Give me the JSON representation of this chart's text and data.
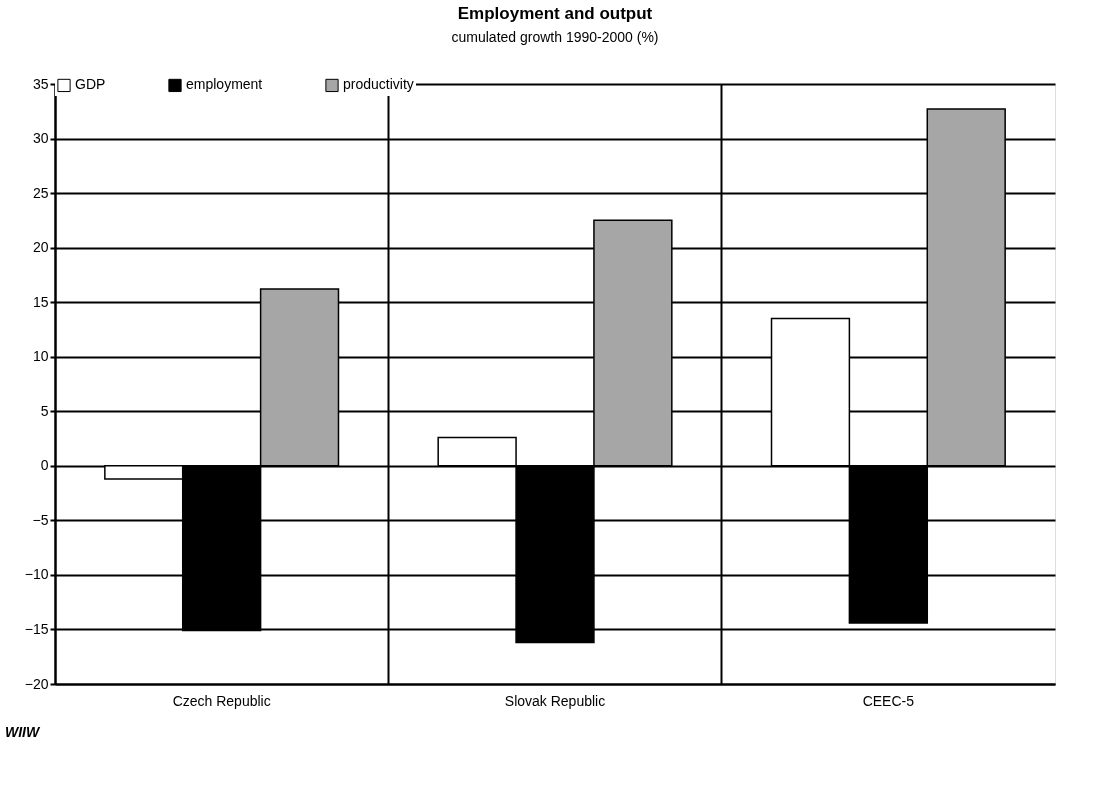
{
  "chart_data": {
    "type": "bar",
    "title": "Employment and output",
    "subtitle": "cumulated growth 1990-2000 (%)",
    "categories": [
      "Czech Republic",
      "Slovak Republic",
      "CEEC-5"
    ],
    "series": [
      {
        "name": "GDP",
        "color": "#ffffff",
        "values": [
          -1.2,
          2.6,
          13.5
        ]
      },
      {
        "name": "employment",
        "color": "#000000",
        "values": [
          -15.1,
          -16.2,
          -14.4
        ]
      },
      {
        "name": "productivity",
        "color": "#a6a6a6",
        "values": [
          16.2,
          22.5,
          32.7
        ]
      }
    ],
    "ylim": [
      -20,
      35
    ],
    "yticks": [
      -20,
      -15,
      -10,
      -5,
      0,
      5,
      10,
      15,
      20,
      25,
      30,
      35
    ],
    "grid": true,
    "legend": "top",
    "annotations": [
      "WIIW"
    ]
  }
}
